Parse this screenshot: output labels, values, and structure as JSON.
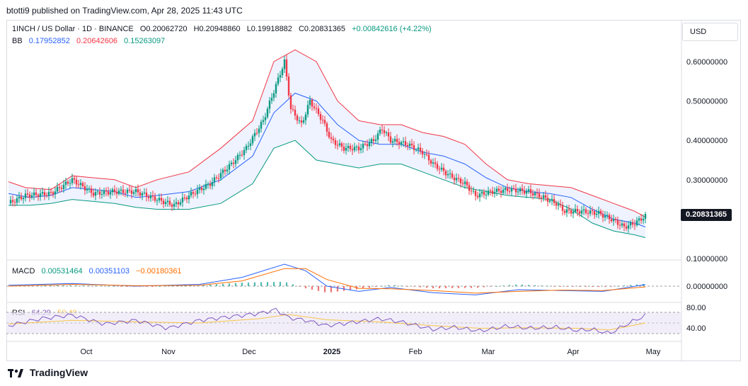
{
  "published": "btotti9 published on TradingView.com, Apr 28, 2025 11:43 UTC",
  "header": {
    "symbol": "1INCH / US Dollar · 1D · BINANCE",
    "open": "O0.20062720",
    "high": "H0.20948860",
    "low": "L0.19918882",
    "close": "C0.20831365",
    "change": "+0.00842616 (+4.22%)"
  },
  "bb": {
    "label": "BB",
    "basis": "0.17952852",
    "upper": "0.20642606",
    "lower": "0.15263097"
  },
  "macd": {
    "label": "MACD",
    "histogram": "0.00531464",
    "macd": "0.00351103",
    "signal": "−0.00180361"
  },
  "rsi": {
    "label": "RSI",
    "value": "64.29",
    "ma": "50.40"
  },
  "currency": "USD",
  "last_price": "0.20831365",
  "brand": "TradingView",
  "colors": {
    "up": "#089981",
    "down": "#f23645",
    "bb_basis": "#2962ff",
    "bb_upper": "#f23645",
    "bb_lower": "#089981",
    "macd": "#2962ff",
    "signal": "#ff6d00",
    "rsi": "#7e57c2",
    "rsi_ma": "#f7c548"
  },
  "chart_data": {
    "type": "candlestick",
    "price_axis": {
      "ticks": [
        "0.60000000",
        "0.50000000",
        "0.40000000",
        "0.30000000",
        "0.10000000"
      ],
      "tick_values": [
        0.6,
        0.5,
        0.4,
        0.3,
        0.1
      ],
      "range": [
        0.1,
        0.65
      ]
    },
    "macd_axis": {
      "ticks": [
        "0.00000000"
      ]
    },
    "rsi_axis": {
      "ticks": [
        "80.00",
        "40.00"
      ],
      "band": [
        30,
        70
      ]
    },
    "time_axis": [
      "Oct",
      "Nov",
      "Dec",
      "2025",
      "Feb",
      "Mar",
      "Apr",
      "May"
    ],
    "bb_upper_points": [
      [
        0,
        0.295
      ],
      [
        8,
        0.28
      ],
      [
        20,
        0.275
      ],
      [
        30,
        0.31
      ],
      [
        40,
        0.305
      ],
      [
        50,
        0.3
      ],
      [
        60,
        0.28
      ],
      [
        70,
        0.3
      ],
      [
        85,
        0.32
      ],
      [
        100,
        0.38
      ],
      [
        115,
        0.45
      ],
      [
        125,
        0.6
      ],
      [
        135,
        0.63
      ],
      [
        145,
        0.6
      ],
      [
        155,
        0.5
      ],
      [
        165,
        0.45
      ],
      [
        175,
        0.44
      ],
      [
        185,
        0.44
      ],
      [
        195,
        0.42
      ],
      [
        205,
        0.41
      ],
      [
        215,
        0.39
      ],
      [
        225,
        0.34
      ],
      [
        235,
        0.3
      ],
      [
        245,
        0.29
      ],
      [
        255,
        0.285
      ],
      [
        265,
        0.28
      ],
      [
        275,
        0.26
      ],
      [
        285,
        0.24
      ],
      [
        295,
        0.22
      ],
      [
        300,
        0.205
      ]
    ],
    "bb_basis_points": [
      [
        0,
        0.265
      ],
      [
        10,
        0.255
      ],
      [
        20,
        0.26
      ],
      [
        30,
        0.28
      ],
      [
        40,
        0.275
      ],
      [
        50,
        0.27
      ],
      [
        60,
        0.255
      ],
      [
        70,
        0.26
      ],
      [
        85,
        0.27
      ],
      [
        100,
        0.3
      ],
      [
        115,
        0.36
      ],
      [
        125,
        0.47
      ],
      [
        135,
        0.52
      ],
      [
        145,
        0.5
      ],
      [
        155,
        0.44
      ],
      [
        165,
        0.4
      ],
      [
        175,
        0.39
      ],
      [
        185,
        0.39
      ],
      [
        195,
        0.37
      ],
      [
        205,
        0.36
      ],
      [
        215,
        0.34
      ],
      [
        225,
        0.305
      ],
      [
        235,
        0.28
      ],
      [
        245,
        0.27
      ],
      [
        255,
        0.265
      ],
      [
        265,
        0.255
      ],
      [
        275,
        0.225
      ],
      [
        285,
        0.2
      ],
      [
        295,
        0.19
      ],
      [
        300,
        0.18
      ]
    ],
    "bb_lower_points": [
      [
        0,
        0.235
      ],
      [
        10,
        0.235
      ],
      [
        20,
        0.24
      ],
      [
        30,
        0.25
      ],
      [
        40,
        0.245
      ],
      [
        50,
        0.24
      ],
      [
        60,
        0.23
      ],
      [
        70,
        0.225
      ],
      [
        85,
        0.225
      ],
      [
        100,
        0.24
      ],
      [
        115,
        0.29
      ],
      [
        125,
        0.38
      ],
      [
        135,
        0.4
      ],
      [
        145,
        0.35
      ],
      [
        155,
        0.34
      ],
      [
        165,
        0.33
      ],
      [
        175,
        0.34
      ],
      [
        185,
        0.34
      ],
      [
        195,
        0.32
      ],
      [
        205,
        0.3
      ],
      [
        215,
        0.28
      ],
      [
        225,
        0.27
      ],
      [
        235,
        0.26
      ],
      [
        245,
        0.255
      ],
      [
        255,
        0.25
      ],
      [
        265,
        0.225
      ],
      [
        275,
        0.19
      ],
      [
        285,
        0.17
      ],
      [
        295,
        0.16
      ],
      [
        300,
        0.153
      ]
    ],
    "close_points": [
      [
        0,
        0.24
      ],
      [
        8,
        0.26
      ],
      [
        20,
        0.265
      ],
      [
        30,
        0.3
      ],
      [
        40,
        0.265
      ],
      [
        50,
        0.27
      ],
      [
        60,
        0.27
      ],
      [
        70,
        0.25
      ],
      [
        78,
        0.235
      ],
      [
        85,
        0.26
      ],
      [
        95,
        0.29
      ],
      [
        105,
        0.34
      ],
      [
        112,
        0.38
      ],
      [
        120,
        0.45
      ],
      [
        126,
        0.54
      ],
      [
        130,
        0.6
      ],
      [
        133,
        0.48
      ],
      [
        138,
        0.44
      ],
      [
        142,
        0.5
      ],
      [
        148,
        0.45
      ],
      [
        152,
        0.4
      ],
      [
        158,
        0.38
      ],
      [
        165,
        0.38
      ],
      [
        172,
        0.4
      ],
      [
        176,
        0.43
      ],
      [
        180,
        0.4
      ],
      [
        188,
        0.39
      ],
      [
        195,
        0.37
      ],
      [
        200,
        0.34
      ],
      [
        208,
        0.31
      ],
      [
        215,
        0.29
      ],
      [
        220,
        0.26
      ],
      [
        228,
        0.27
      ],
      [
        236,
        0.275
      ],
      [
        245,
        0.27
      ],
      [
        252,
        0.255
      ],
      [
        258,
        0.24
      ],
      [
        262,
        0.22
      ],
      [
        270,
        0.22
      ],
      [
        278,
        0.215
      ],
      [
        284,
        0.2
      ],
      [
        290,
        0.18
      ],
      [
        295,
        0.19
      ],
      [
        300,
        0.208
      ]
    ],
    "macd_points": [
      [
        0,
        0.002
      ],
      [
        30,
        0.006
      ],
      [
        60,
        0.0
      ],
      [
        90,
        0.004
      ],
      [
        110,
        0.02
      ],
      [
        130,
        0.05
      ],
      [
        140,
        0.035
      ],
      [
        150,
        0.0
      ],
      [
        165,
        -0.012
      ],
      [
        180,
        -0.003
      ],
      [
        200,
        -0.015
      ],
      [
        220,
        -0.02
      ],
      [
        240,
        -0.008
      ],
      [
        260,
        -0.01
      ],
      [
        280,
        -0.012
      ],
      [
        300,
        0.0035
      ]
    ],
    "signal_points": [
      [
        0,
        0.0
      ],
      [
        30,
        0.004
      ],
      [
        60,
        0.001
      ],
      [
        90,
        0.002
      ],
      [
        110,
        0.012
      ],
      [
        130,
        0.04
      ],
      [
        140,
        0.04
      ],
      [
        150,
        0.015
      ],
      [
        165,
        -0.005
      ],
      [
        180,
        -0.006
      ],
      [
        200,
        -0.01
      ],
      [
        220,
        -0.016
      ],
      [
        240,
        -0.012
      ],
      [
        260,
        -0.009
      ],
      [
        280,
        -0.01
      ],
      [
        300,
        -0.0018
      ]
    ],
    "rsi_points": [
      [
        0,
        45
      ],
      [
        15,
        58
      ],
      [
        30,
        65
      ],
      [
        45,
        48
      ],
      [
        60,
        55
      ],
      [
        75,
        40
      ],
      [
        90,
        55
      ],
      [
        105,
        62
      ],
      [
        118,
        68
      ],
      [
        126,
        75
      ],
      [
        132,
        60
      ],
      [
        140,
        55
      ],
      [
        150,
        45
      ],
      [
        160,
        50
      ],
      [
        175,
        58
      ],
      [
        185,
        52
      ],
      [
        200,
        38
      ],
      [
        210,
        42
      ],
      [
        222,
        35
      ],
      [
        235,
        44
      ],
      [
        245,
        40
      ],
      [
        258,
        42
      ],
      [
        268,
        36
      ],
      [
        275,
        38
      ],
      [
        283,
        30
      ],
      [
        290,
        45
      ],
      [
        295,
        55
      ],
      [
        300,
        64
      ]
    ],
    "rsi_ma_points": [
      [
        0,
        48
      ],
      [
        30,
        55
      ],
      [
        60,
        52
      ],
      [
        90,
        50
      ],
      [
        118,
        58
      ],
      [
        132,
        66
      ],
      [
        150,
        56
      ],
      [
        175,
        52
      ],
      [
        200,
        45
      ],
      [
        222,
        40
      ],
      [
        245,
        41
      ],
      [
        268,
        40
      ],
      [
        283,
        37
      ],
      [
        295,
        46
      ],
      [
        300,
        50
      ]
    ]
  }
}
